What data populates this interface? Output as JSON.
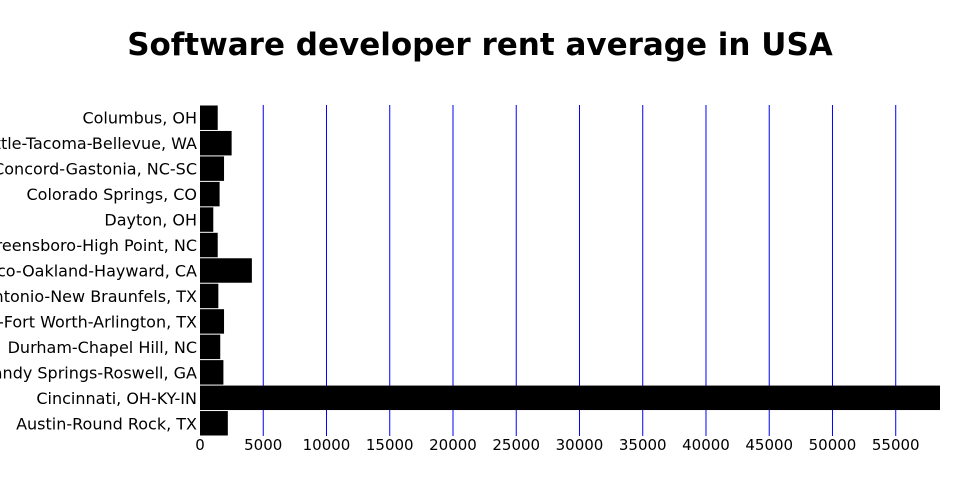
{
  "chart_data": {
    "type": "bar",
    "orientation": "horizontal",
    "title": "Software developer rent average in USA",
    "xlabel": "",
    "ylabel": "",
    "categories": [
      "Columbus, OH",
      "Seattle-Tacoma-Bellevue, WA",
      "Charlotte-Concord-Gastonia, NC-SC",
      "Colorado Springs, CO",
      "Dayton, OH",
      "Winston-Salem-Greensboro-High Point, NC",
      "San Francisco-Oakland-Hayward, CA",
      "San Antonio-New Braunfels, TX",
      "Dallas-Fort Worth-Arlington, TX",
      "Durham-Chapel Hill, NC",
      "Atlanta-Sandy Springs-Roswell, GA",
      "Cincinnati, OH-KY-IN",
      "Austin-Round Rock, TX"
    ],
    "values": [
      1400,
      2500,
      1900,
      1550,
      1050,
      1400,
      4100,
      1450,
      1900,
      1600,
      1850,
      58500,
      2200
    ],
    "xlim": [
      0,
      58500
    ],
    "xticks": [
      0,
      5000,
      10000,
      15000,
      20000,
      25000,
      30000,
      35000,
      40000,
      45000,
      50000,
      55000
    ],
    "grid": "vertical",
    "colors": {
      "bar": "#000000",
      "grid": "#0000ff",
      "text": "#000000"
    }
  }
}
